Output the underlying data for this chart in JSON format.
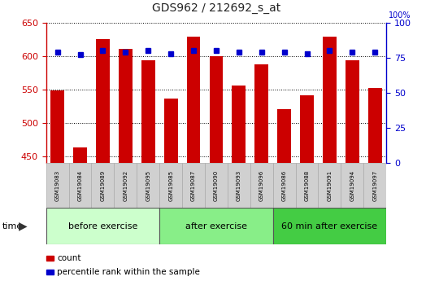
{
  "title": "GDS962 / 212692_s_at",
  "categories": [
    "GSM19083",
    "GSM19084",
    "GSM19089",
    "GSM19092",
    "GSM19095",
    "GSM19085",
    "GSM19087",
    "GSM19090",
    "GSM19093",
    "GSM19096",
    "GSM19086",
    "GSM19088",
    "GSM19091",
    "GSM19094",
    "GSM19097"
  ],
  "bar_values": [
    548,
    463,
    625,
    610,
    593,
    536,
    629,
    600,
    556,
    588,
    520,
    541,
    629,
    593,
    552
  ],
  "percentile_values": [
    79,
    77,
    80,
    79,
    80,
    78,
    80,
    80,
    79,
    79,
    79,
    78,
    80,
    79,
    79
  ],
  "bar_color": "#cc0000",
  "dot_color": "#0000cc",
  "ylim_left": [
    440,
    650
  ],
  "ylim_right": [
    0,
    100
  ],
  "yticks_left": [
    450,
    500,
    550,
    600,
    650
  ],
  "yticks_right": [
    0,
    25,
    50,
    75,
    100
  ],
  "groups": [
    {
      "label": "before exercise",
      "start": 0,
      "end": 5,
      "color": "#ccffcc"
    },
    {
      "label": "after exercise",
      "start": 5,
      "end": 10,
      "color": "#88ee88"
    },
    {
      "label": "60 min after exercise",
      "start": 10,
      "end": 15,
      "color": "#44cc44"
    }
  ],
  "legend_count_label": "count",
  "legend_pct_label": "percentile rank within the sample",
  "time_label": "time",
  "left_axis_color": "#cc0000",
  "right_axis_color": "#0000cc",
  "bar_width": 0.6,
  "xlim": [
    -0.5,
    14.5
  ],
  "title_fontsize": 10,
  "tick_fontsize": 8,
  "cat_fontsize": 5,
  "group_fontsize": 8,
  "legend_fontsize": 7.5
}
